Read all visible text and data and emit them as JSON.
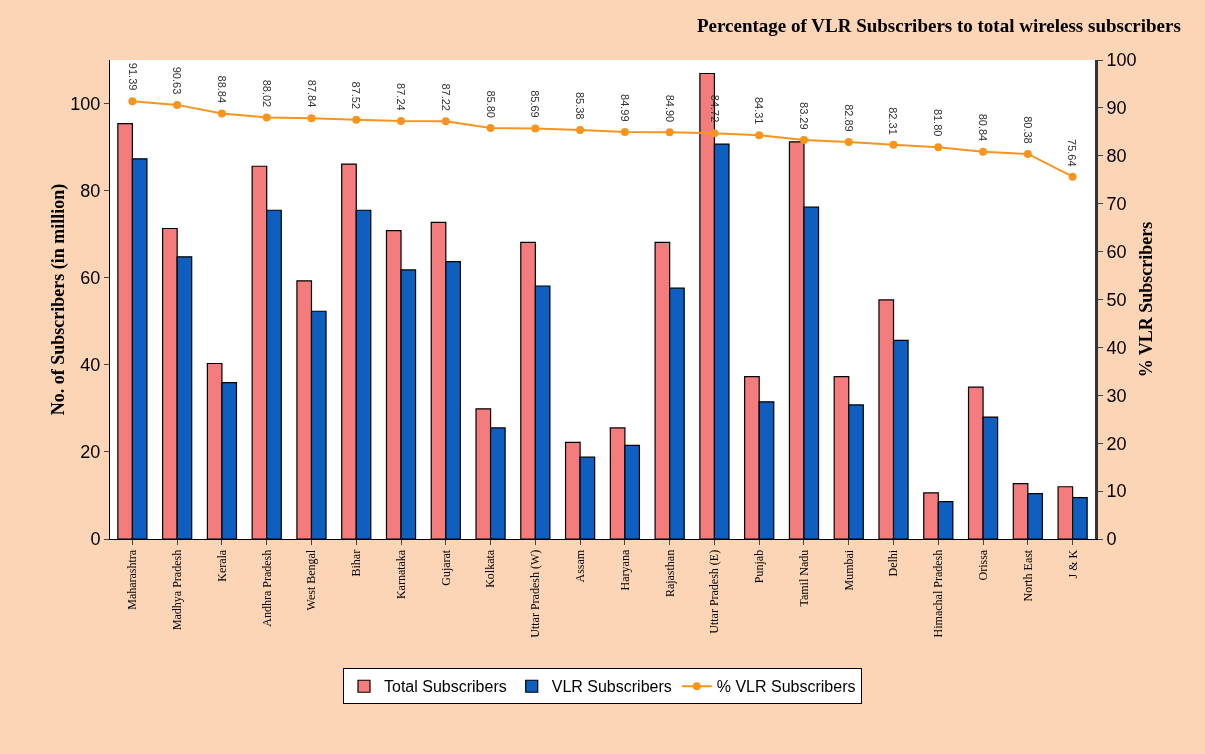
{
  "chart_data": {
    "type": "bar",
    "title": "Percentage of VLR Subscribers to total wireless subscribers",
    "ylabel": "No. of Subscribers (in million)",
    "y2label": "% VLR Subscribers",
    "categories": [
      "Maharashtra",
      "Madhya Pradesh",
      "Kerala",
      "Andhra Pradesh",
      "West Bengal",
      "Bihar",
      "Karnataka",
      "Gujarat",
      "Kolkata",
      "Uttar Pradesh (W)",
      "Assam",
      "Haryana",
      "Rajasthan",
      "Uttar Pradesh (E)",
      "Punjab",
      "Tamil Nadu",
      "Mumbai",
      "Delhi",
      "Himachal Pradesh",
      "Orissa",
      "North East",
      "J & K"
    ],
    "series": [
      {
        "name": "Total Subscribers",
        "color": "#f47c7c",
        "values": [
          95.4,
          71.3,
          40.3,
          85.6,
          59.3,
          86.1,
          70.8,
          72.7,
          29.9,
          68.1,
          22.2,
          25.5,
          68.1,
          106.9,
          37.3,
          91.2,
          37.3,
          54.9,
          10.6,
          34.9,
          12.7,
          12.0
        ]
      },
      {
        "name": "VLR Subscribers",
        "color": "#0f5fc0",
        "values": [
          87.3,
          64.8,
          35.9,
          75.5,
          52.3,
          75.5,
          61.8,
          63.7,
          25.5,
          58.1,
          18.8,
          21.5,
          57.6,
          90.7,
          31.5,
          76.2,
          30.8,
          45.6,
          8.6,
          28.0,
          10.4,
          9.5
        ]
      },
      {
        "name": "% VLR Subscribers",
        "type": "line",
        "axis": "y2",
        "color": "#f7941d",
        "marker": "circle",
        "values": [
          91.39,
          90.63,
          88.84,
          88.02,
          87.84,
          87.52,
          87.24,
          87.22,
          85.8,
          85.69,
          85.38,
          84.99,
          84.9,
          84.72,
          84.31,
          83.29,
          82.89,
          82.31,
          81.8,
          80.84,
          80.38,
          75.64
        ],
        "value_labels": [
          "91.39",
          "90.63",
          "88.84",
          "88.02",
          "87.84",
          "87.52",
          "87.24",
          "87.22",
          "85.80",
          "85.69",
          "85.38",
          "84.99",
          "84.90",
          "84.72",
          "84.31",
          "83.29",
          "82.89",
          "82.31",
          "81.80",
          "80.84",
          "80.38",
          "75.64"
        ]
      }
    ],
    "ylim": [
      0,
      110
    ],
    "yticks": [
      0,
      20,
      40,
      60,
      80,
      100
    ],
    "y2lim": [
      0,
      100
    ],
    "y2ticks": [
      0,
      10,
      20,
      30,
      40,
      50,
      60,
      70,
      80,
      90,
      100
    ],
    "grid": false,
    "legend": "bottom"
  }
}
